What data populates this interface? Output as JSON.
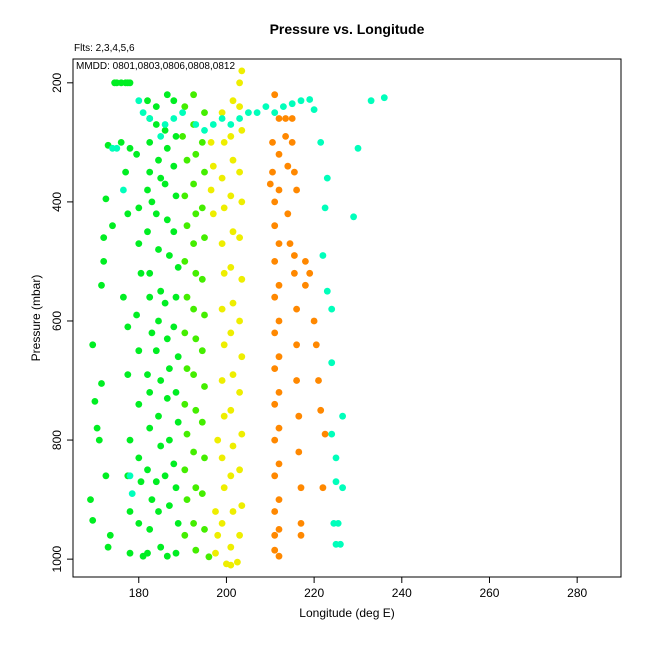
{
  "chart_data": {
    "type": "scatter",
    "title": "Pressure vs. Longitude",
    "subtitle": "Flts: 2,3,4,5,6",
    "annotation": "MMDD: 0801,0803,0806,0808,0812",
    "xlabel": "Longitude (deg E)",
    "ylabel": "Pressure (mbar)",
    "xlim": [
      165,
      290
    ],
    "ylim": [
      1030,
      160
    ],
    "y_inverted": true,
    "x_ticks": [
      180,
      200,
      220,
      240,
      260,
      280
    ],
    "y_ticks": [
      200,
      400,
      600,
      800,
      1000
    ],
    "grid": false,
    "series": [
      {
        "color": "#00ee22",
        "points": [
          [
            169.5,
            640
          ],
          [
            170.5,
            780
          ],
          [
            169,
            900
          ],
          [
            169.5,
            935
          ],
          [
            170,
            735
          ],
          [
            171.5,
            705
          ],
          [
            171,
            800
          ],
          [
            172,
            500
          ],
          [
            171.5,
            540
          ],
          [
            172.5,
            395
          ],
          [
            172,
            460
          ],
          [
            173,
            305
          ],
          [
            173.5,
            960
          ],
          [
            172.5,
            860
          ],
          [
            173,
            980
          ],
          [
            174.5,
            200
          ],
          [
            175,
            200
          ],
          [
            176,
            200
          ],
          [
            177,
            200
          ],
          [
            177.5,
            200
          ],
          [
            178,
            200
          ],
          [
            174,
            440
          ],
          [
            176,
            300
          ],
          [
            178,
            310
          ],
          [
            177,
            350
          ],
          [
            177.5,
            420
          ],
          [
            176.5,
            560
          ],
          [
            177.5,
            610
          ],
          [
            177.5,
            690
          ],
          [
            178,
            800
          ],
          [
            177.5,
            860
          ],
          [
            178,
            920
          ],
          [
            178,
            990
          ],
          [
            179.5,
            320
          ],
          [
            180,
            410
          ],
          [
            180,
            470
          ],
          [
            180.5,
            520
          ],
          [
            179.5,
            590
          ],
          [
            180,
            650
          ],
          [
            180,
            740
          ],
          [
            180,
            830
          ],
          [
            180.5,
            870
          ],
          [
            180,
            940
          ],
          [
            181,
            995
          ],
          [
            182,
            230
          ],
          [
            182.5,
            260
          ],
          [
            182.5,
            300
          ],
          [
            182.5,
            350
          ],
          [
            182,
            380
          ],
          [
            183,
            400
          ],
          [
            182,
            450
          ],
          [
            182.5,
            520
          ],
          [
            182.5,
            560
          ],
          [
            183,
            620
          ],
          [
            182,
            690
          ],
          [
            182.5,
            720
          ],
          [
            182.5,
            780
          ],
          [
            182,
            850
          ],
          [
            183,
            900
          ],
          [
            182.5,
            950
          ],
          [
            182,
            990
          ],
          [
            184,
            240
          ],
          [
            184,
            270
          ],
          [
            184.5,
            330
          ],
          [
            185,
            360
          ],
          [
            184,
            420
          ],
          [
            184.5,
            480
          ],
          [
            185,
            550
          ],
          [
            184.5,
            600
          ],
          [
            184,
            650
          ],
          [
            185,
            700
          ],
          [
            184.5,
            760
          ],
          [
            185,
            810
          ],
          [
            184,
            870
          ],
          [
            184.5,
            920
          ],
          [
            185,
            980
          ],
          [
            186.5,
            220
          ],
          [
            186,
            280
          ],
          [
            186.5,
            310
          ],
          [
            186,
            370
          ],
          [
            186.5,
            430
          ],
          [
            187,
            490
          ],
          [
            186,
            570
          ],
          [
            186.5,
            630
          ],
          [
            187,
            680
          ],
          [
            186.5,
            730
          ],
          [
            187,
            800
          ],
          [
            186,
            860
          ],
          [
            187,
            910
          ],
          [
            186.5,
            995
          ],
          [
            188,
            230
          ],
          [
            188.5,
            290
          ],
          [
            188,
            340
          ],
          [
            188.5,
            390
          ],
          [
            188,
            450
          ],
          [
            189,
            510
          ],
          [
            188.5,
            560
          ],
          [
            188,
            610
          ],
          [
            189,
            660
          ],
          [
            188.5,
            720
          ],
          [
            189,
            770
          ],
          [
            188,
            840
          ],
          [
            188.5,
            880
          ],
          [
            189,
            940
          ],
          [
            188.5,
            990
          ]
        ]
      },
      {
        "color": "#44ee00",
        "points": [
          [
            190.5,
            240
          ],
          [
            190,
            290
          ],
          [
            191,
            330
          ],
          [
            190.5,
            390
          ],
          [
            191,
            440
          ],
          [
            190.5,
            500
          ],
          [
            191,
            560
          ],
          [
            190.5,
            620
          ],
          [
            191,
            680
          ],
          [
            190.5,
            740
          ],
          [
            191,
            790
          ],
          [
            190.5,
            850
          ],
          [
            191,
            900
          ],
          [
            190.5,
            960
          ],
          [
            192.5,
            220
          ],
          [
            192.5,
            270
          ],
          [
            193,
            320
          ],
          [
            192.5,
            370
          ],
          [
            193,
            420
          ],
          [
            192.5,
            470
          ],
          [
            193,
            520
          ],
          [
            192.5,
            580
          ],
          [
            193,
            630
          ],
          [
            192.5,
            690
          ],
          [
            193,
            750
          ],
          [
            192.5,
            820
          ],
          [
            193,
            880
          ],
          [
            192.5,
            940
          ],
          [
            193,
            985
          ],
          [
            195,
            250
          ],
          [
            194.5,
            300
          ],
          [
            195,
            350
          ],
          [
            194.5,
            410
          ],
          [
            195,
            460
          ],
          [
            194.5,
            530
          ],
          [
            195,
            590
          ],
          [
            194.5,
            650
          ],
          [
            195,
            710
          ],
          [
            194.5,
            770
          ],
          [
            195,
            830
          ],
          [
            194.5,
            890
          ],
          [
            195,
            950
          ],
          [
            196,
            996
          ]
        ]
      },
      {
        "color": "#eeee00",
        "points": [
          [
            196.5,
            300
          ],
          [
            197,
            340
          ],
          [
            196.5,
            380
          ],
          [
            197,
            420
          ],
          [
            198,
            800
          ],
          [
            197.5,
            920
          ],
          [
            198,
            960
          ],
          [
            197.5,
            990
          ],
          [
            199,
            250
          ],
          [
            199.5,
            300
          ],
          [
            199,
            360
          ],
          [
            199.5,
            410
          ],
          [
            199,
            470
          ],
          [
            199.5,
            520
          ],
          [
            199,
            580
          ],
          [
            199.5,
            640
          ],
          [
            199,
            700
          ],
          [
            199.5,
            760
          ],
          [
            199,
            830
          ],
          [
            199.5,
            880
          ],
          [
            199,
            940
          ],
          [
            200,
            1008
          ],
          [
            201,
            1010
          ],
          [
            201.5,
            230
          ],
          [
            201,
            290
          ],
          [
            201.5,
            330
          ],
          [
            201,
            390
          ],
          [
            201.5,
            450
          ],
          [
            201,
            510
          ],
          [
            201.5,
            570
          ],
          [
            201,
            620
          ],
          [
            201.5,
            690
          ],
          [
            201,
            750
          ],
          [
            201.5,
            810
          ],
          [
            201,
            860
          ],
          [
            201.5,
            920
          ],
          [
            201,
            980
          ],
          [
            202.5,
            1005
          ],
          [
            203,
            200
          ],
          [
            203.5,
            180
          ],
          [
            203,
            240
          ],
          [
            203.5,
            280
          ],
          [
            203,
            350
          ],
          [
            203.5,
            400
          ],
          [
            203,
            460
          ],
          [
            203.5,
            530
          ],
          [
            203,
            600
          ],
          [
            203.5,
            660
          ],
          [
            203,
            720
          ],
          [
            203.5,
            790
          ],
          [
            203,
            850
          ],
          [
            203.5,
            910
          ],
          [
            203,
            960
          ]
        ]
      },
      {
        "color": "#ff8800",
        "points": [
          [
            210,
            370
          ],
          [
            210.5,
            300
          ],
          [
            210.5,
            350
          ],
          [
            211,
            220
          ],
          [
            211,
            400
          ],
          [
            211,
            440
          ],
          [
            211,
            500
          ],
          [
            211,
            560
          ],
          [
            211,
            620
          ],
          [
            211,
            680
          ],
          [
            211,
            740
          ],
          [
            211,
            800
          ],
          [
            211,
            860
          ],
          [
            211,
            920
          ],
          [
            211,
            960
          ],
          [
            211,
            985
          ],
          [
            212,
            260
          ],
          [
            212,
            320
          ],
          [
            212,
            380
          ],
          [
            212,
            470
          ],
          [
            212,
            540
          ],
          [
            212,
            600
          ],
          [
            212,
            660
          ],
          [
            212,
            720
          ],
          [
            212,
            780
          ],
          [
            212,
            840
          ],
          [
            212,
            900
          ],
          [
            212,
            950
          ],
          [
            212,
            995
          ],
          [
            213.5,
            260
          ],
          [
            213.5,
            290
          ],
          [
            214,
            340
          ],
          [
            214,
            420
          ],
          [
            214.5,
            470
          ],
          [
            215,
            260
          ],
          [
            215,
            300
          ],
          [
            215.5,
            350
          ],
          [
            216,
            380
          ],
          [
            215.5,
            490
          ],
          [
            215.5,
            520
          ],
          [
            216,
            580
          ],
          [
            216,
            640
          ],
          [
            216,
            700
          ],
          [
            216.5,
            760
          ],
          [
            216.5,
            820
          ],
          [
            217,
            880
          ],
          [
            217,
            940
          ],
          [
            217,
            960
          ],
          [
            218,
            500
          ],
          [
            218,
            540
          ],
          [
            219,
            520
          ],
          [
            220,
            600
          ],
          [
            220.5,
            640
          ],
          [
            221,
            700
          ],
          [
            221.5,
            750
          ],
          [
            222,
            880
          ],
          [
            222.5,
            790
          ]
        ]
      },
      {
        "color": "#00ffbb",
        "points": [
          [
            174,
            310
          ],
          [
            175,
            310
          ],
          [
            176.5,
            380
          ],
          [
            178,
            860
          ],
          [
            178.5,
            890
          ],
          [
            180,
            230
          ],
          [
            181,
            250
          ],
          [
            182.5,
            260
          ],
          [
            185,
            290
          ],
          [
            186,
            270
          ],
          [
            188,
            260
          ],
          [
            190,
            250
          ],
          [
            193,
            270
          ],
          [
            195,
            280
          ],
          [
            197,
            270
          ],
          [
            199,
            260
          ],
          [
            201,
            270
          ],
          [
            203,
            260
          ],
          [
            205,
            250
          ],
          [
            207,
            250
          ],
          [
            209,
            240
          ],
          [
            211,
            250
          ],
          [
            213,
            240
          ],
          [
            215,
            235
          ],
          [
            217,
            230
          ],
          [
            219,
            228
          ],
          [
            220,
            245
          ],
          [
            221.5,
            300
          ],
          [
            222,
            490
          ],
          [
            222.5,
            410
          ],
          [
            223,
            360
          ],
          [
            223,
            550
          ],
          [
            224,
            580
          ],
          [
            224,
            670
          ],
          [
            225,
            830
          ],
          [
            224,
            790
          ],
          [
            225,
            870
          ],
          [
            226.5,
            760
          ],
          [
            224.5,
            940
          ],
          [
            225.5,
            940
          ],
          [
            226.5,
            880
          ],
          [
            225,
            975
          ],
          [
            226,
            975
          ],
          [
            229,
            425
          ],
          [
            230,
            310
          ],
          [
            233,
            230
          ],
          [
            236,
            225
          ]
        ]
      }
    ]
  }
}
